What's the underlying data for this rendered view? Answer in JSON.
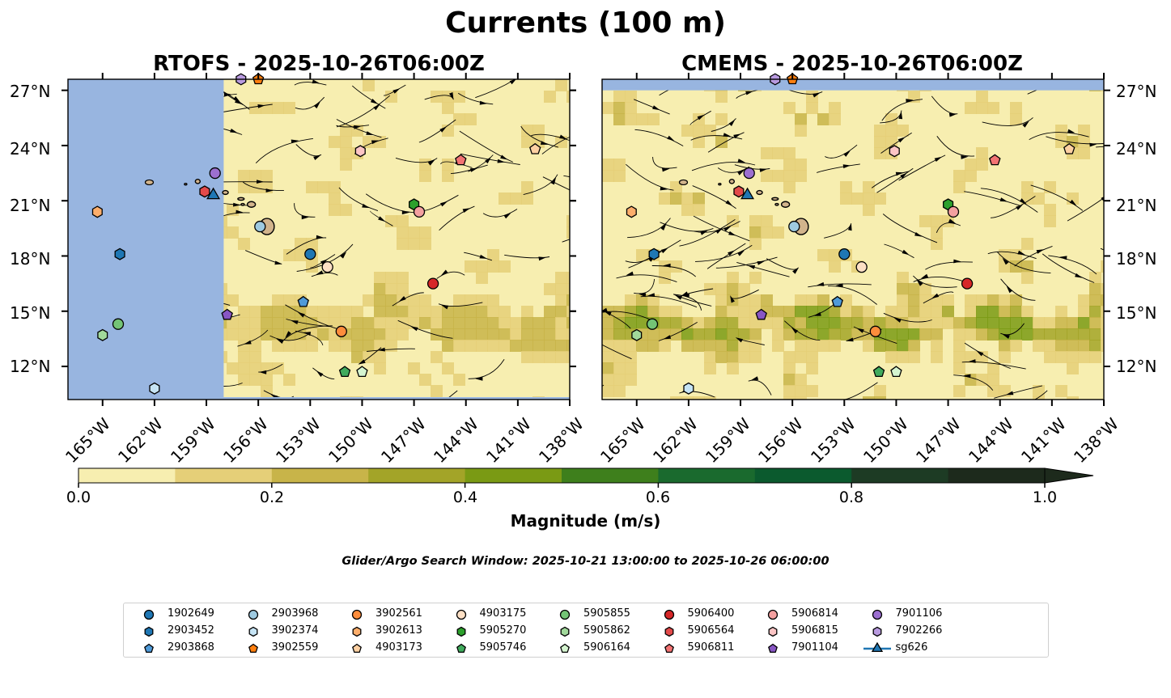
{
  "title": "Currents (100 m)",
  "panels": [
    {
      "title": "RTOFS - 2025-10-26T06:00Z"
    },
    {
      "title": "CMEMS - 2025-10-26T06:00Z"
    }
  ],
  "lat_labels": [
    "27°N",
    "24°N",
    "21°N",
    "18°N",
    "15°N",
    "12°N"
  ],
  "lon_labels": [
    "165°W",
    "162°W",
    "159°W",
    "156°W",
    "153°W",
    "150°W",
    "147°W",
    "144°W",
    "141°W",
    "138°W"
  ],
  "colorbar": {
    "label": "Magnitude (m/s)",
    "tick_labels": [
      "0.0",
      "0.2",
      "0.4",
      "0.6",
      "0.8",
      "1.0"
    ],
    "colors": [
      "#f7eeb0",
      "#e5cf78",
      "#c8b449",
      "#a3a428",
      "#7a9a14",
      "#3e7f1c",
      "#1a6a2e",
      "#0b5a2e",
      "#1d3b24",
      "#1d2a1c"
    ]
  },
  "search_window": "Glider/Argo Search Window: 2025-10-21 13:00:00 to 2025-10-26 06:00:00",
  "legend": [
    {
      "label": "1902649",
      "color": "#1f77b4",
      "marker": "circle"
    },
    {
      "label": "2903452",
      "color": "#1f77b4",
      "marker": "hexagon"
    },
    {
      "label": "2903868",
      "color": "#4f9ad8",
      "marker": "pentagon"
    },
    {
      "label": "2903968",
      "color": "#9ecae1",
      "marker": "circle"
    },
    {
      "label": "3902374",
      "color": "#c6e4f5",
      "marker": "hexagon"
    },
    {
      "label": "3902559",
      "color": "#ff7f0e",
      "marker": "pentagon"
    },
    {
      "label": "3902561",
      "color": "#fd8d3c",
      "marker": "circle"
    },
    {
      "label": "3902613",
      "color": "#fdae6b",
      "marker": "hexagon"
    },
    {
      "label": "4903173",
      "color": "#fdd0a2",
      "marker": "pentagon"
    },
    {
      "label": "4903175",
      "color": "#fde0c5",
      "marker": "circle"
    },
    {
      "label": "5905270",
      "color": "#2ca02c",
      "marker": "hexagon"
    },
    {
      "label": "5905746",
      "color": "#41ab5d",
      "marker": "pentagon"
    },
    {
      "label": "5905855",
      "color": "#74c476",
      "marker": "circle"
    },
    {
      "label": "5905862",
      "color": "#a1d99b",
      "marker": "hexagon"
    },
    {
      "label": "5906164",
      "color": "#d5f5d0",
      "marker": "pentagon"
    },
    {
      "label": "5906400",
      "color": "#d62728",
      "marker": "circle"
    },
    {
      "label": "5906564",
      "color": "#e34a4a",
      "marker": "hexagon"
    },
    {
      "label": "5906811",
      "color": "#f27373",
      "marker": "pentagon"
    },
    {
      "label": "5906814",
      "color": "#f4a0a0",
      "marker": "circle"
    },
    {
      "label": "5906815",
      "color": "#fcc5c5",
      "marker": "hexagon"
    },
    {
      "label": "7901104",
      "color": "#8856c4",
      "marker": "pentagon"
    },
    {
      "label": "7901106",
      "color": "#9c6fd0",
      "marker": "circle"
    },
    {
      "label": "7902266",
      "color": "#b99be0",
      "marker": "hexagon"
    },
    {
      "label": "sg626",
      "color": "#1f77b4",
      "marker": "triangle"
    }
  ],
  "map_extent": {
    "lon": [
      -167,
      -138
    ],
    "lat": [
      10.2,
      27.6
    ]
  },
  "rtofs_land_mask_lon_max": -158,
  "observations": [
    {
      "id": "1902649",
      "lon": -153,
      "lat": 18.1
    },
    {
      "id": "2903452",
      "lon": -164,
      "lat": 18.1
    },
    {
      "id": "2903868",
      "lon": -153.4,
      "lat": 15.5
    },
    {
      "id": "2903968",
      "lon": -155.9,
      "lat": 19.6
    },
    {
      "id": "3902374",
      "lon": -162,
      "lat": 10.8
    },
    {
      "id": "3902559",
      "lon": -156,
      "lat": 27.6
    },
    {
      "id": "3902561",
      "lon": -151.2,
      "lat": 13.9
    },
    {
      "id": "3902613",
      "lon": -165.3,
      "lat": 20.4
    },
    {
      "id": "4903173",
      "lon": -140,
      "lat": 23.8
    },
    {
      "id": "4903175",
      "lon": -152,
      "lat": 17.4
    },
    {
      "id": "5905270",
      "lon": -147,
      "lat": 20.8
    },
    {
      "id": "5905746",
      "lon": -151,
      "lat": 11.7
    },
    {
      "id": "5905855",
      "lon": -164.1,
      "lat": 14.3
    },
    {
      "id": "5905862",
      "lon": -165,
      "lat": 13.7
    },
    {
      "id": "5906164",
      "lon": -150,
      "lat": 11.7
    },
    {
      "id": "5906400",
      "lon": -145.9,
      "lat": 16.5
    },
    {
      "id": "5906564",
      "lon": -159.1,
      "lat": 21.5
    },
    {
      "id": "5906811",
      "lon": -144.3,
      "lat": 23.2
    },
    {
      "id": "5906814",
      "lon": -146.7,
      "lat": 20.4
    },
    {
      "id": "5906815",
      "lon": -150.1,
      "lat": 23.7
    },
    {
      "id": "7901104",
      "lon": -157.8,
      "lat": 14.8
    },
    {
      "id": "7901106",
      "lon": -158.5,
      "lat": 22.5
    },
    {
      "id": "7902266",
      "lon": -157,
      "lat": 27.6
    },
    {
      "id": "sg626",
      "lon": -158.6,
      "lat": 21.3
    }
  ]
}
